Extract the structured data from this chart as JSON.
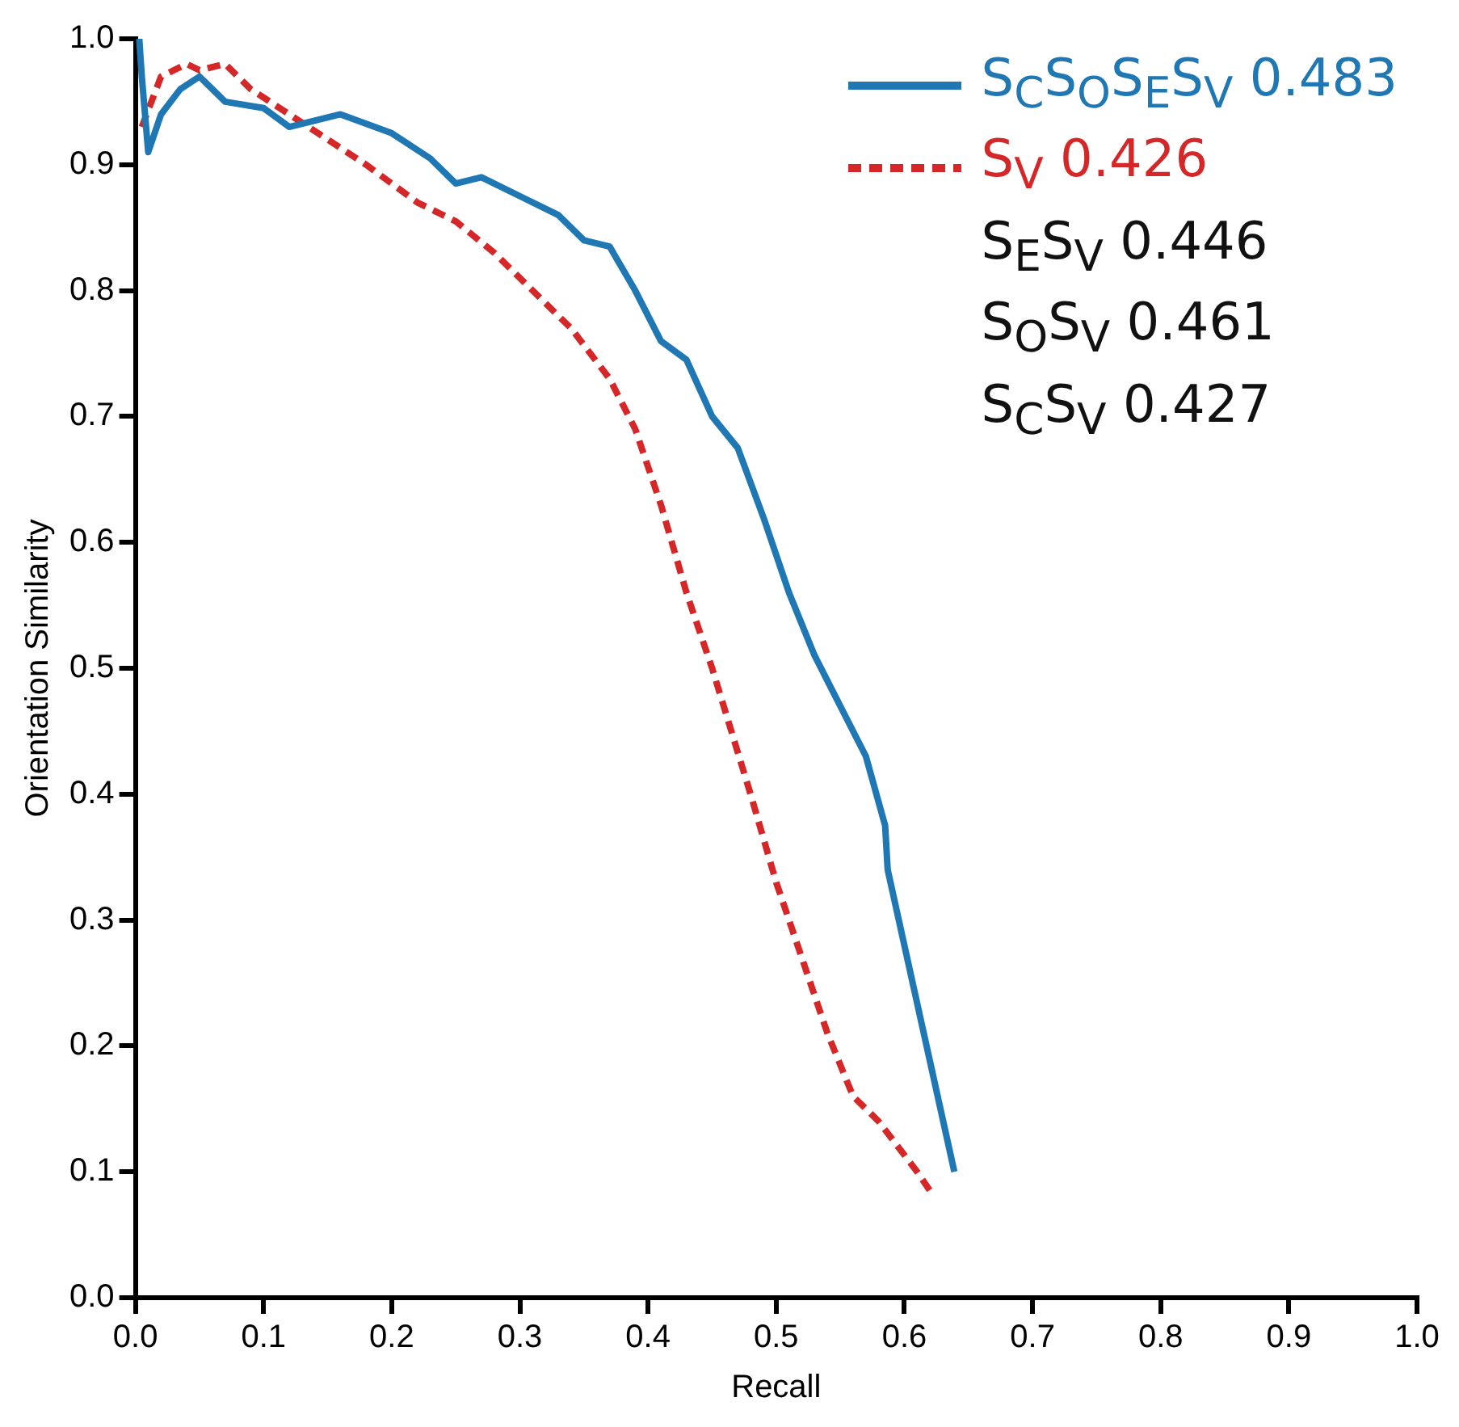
{
  "chart_data": {
    "type": "line",
    "xlabel": "Recall",
    "ylabel": "Orientation Similarity",
    "xlim": [
      0,
      1
    ],
    "ylim": [
      0,
      1
    ],
    "xticks": [
      "0.0",
      0.1,
      0.2,
      0.3,
      0.4,
      0.5,
      0.6,
      0.7,
      0.8,
      0.9,
      "1.0"
    ],
    "yticks": [
      "0.0",
      0.1,
      0.2,
      0.3,
      0.4,
      0.5,
      0.6,
      0.7,
      0.8,
      0.9,
      "1.0"
    ],
    "grid": false,
    "legend": "top right",
    "marker": "none",
    "series": [
      {
        "name": "S$_{C}$S$_{O}$S$_{E}$S$_{V}$ 0.483",
        "color": "#1f77b4",
        "line_style": "solid",
        "x": [
          0.003,
          0.005,
          0.01,
          0.02,
          0.035,
          0.05,
          0.07,
          0.1,
          0.12,
          0.16,
          0.2,
          0.23,
          0.25,
          0.27,
          0.3,
          0.33,
          0.35,
          0.37,
          0.39,
          0.41,
          0.43,
          0.45,
          0.47,
          0.49,
          0.51,
          0.53,
          0.55,
          0.57,
          0.585,
          0.587,
          0.639
        ],
        "values": [
          1.0,
          0.97,
          0.91,
          0.94,
          0.96,
          0.97,
          0.95,
          0.945,
          0.93,
          0.94,
          0.925,
          0.905,
          0.885,
          0.89,
          0.875,
          0.86,
          0.84,
          0.835,
          0.8,
          0.76,
          0.745,
          0.7,
          0.675,
          0.62,
          0.56,
          0.51,
          0.47,
          0.43,
          0.375,
          0.34,
          0.1
        ]
      },
      {
        "name": "S$_{V}$ 0.426",
        "color": "#d62728",
        "line_style": "dashed",
        "x": [
          0.005,
          0.02,
          0.04,
          0.05,
          0.07,
          0.09,
          0.12,
          0.15,
          0.18,
          0.22,
          0.25,
          0.28,
          0.31,
          0.34,
          0.37,
          0.39,
          0.41,
          0.43,
          0.45,
          0.465,
          0.48,
          0.5,
          0.52,
          0.54,
          0.56,
          0.58,
          0.61,
          0.62
        ],
        "values": [
          0.93,
          0.97,
          0.98,
          0.975,
          0.98,
          0.96,
          0.94,
          0.92,
          0.9,
          0.87,
          0.855,
          0.83,
          0.8,
          0.77,
          0.73,
          0.69,
          0.63,
          0.56,
          0.5,
          0.45,
          0.4,
          0.33,
          0.27,
          0.21,
          0.16,
          0.14,
          0.1,
          0.085
        ]
      }
    ],
    "annotations": [
      "S$_{E}$S$_{V}$ 0.446",
      "S$_{O}$S$_{V}$ 0.461",
      "S$_{C}$S$_{V}$ 0.427"
    ]
  }
}
